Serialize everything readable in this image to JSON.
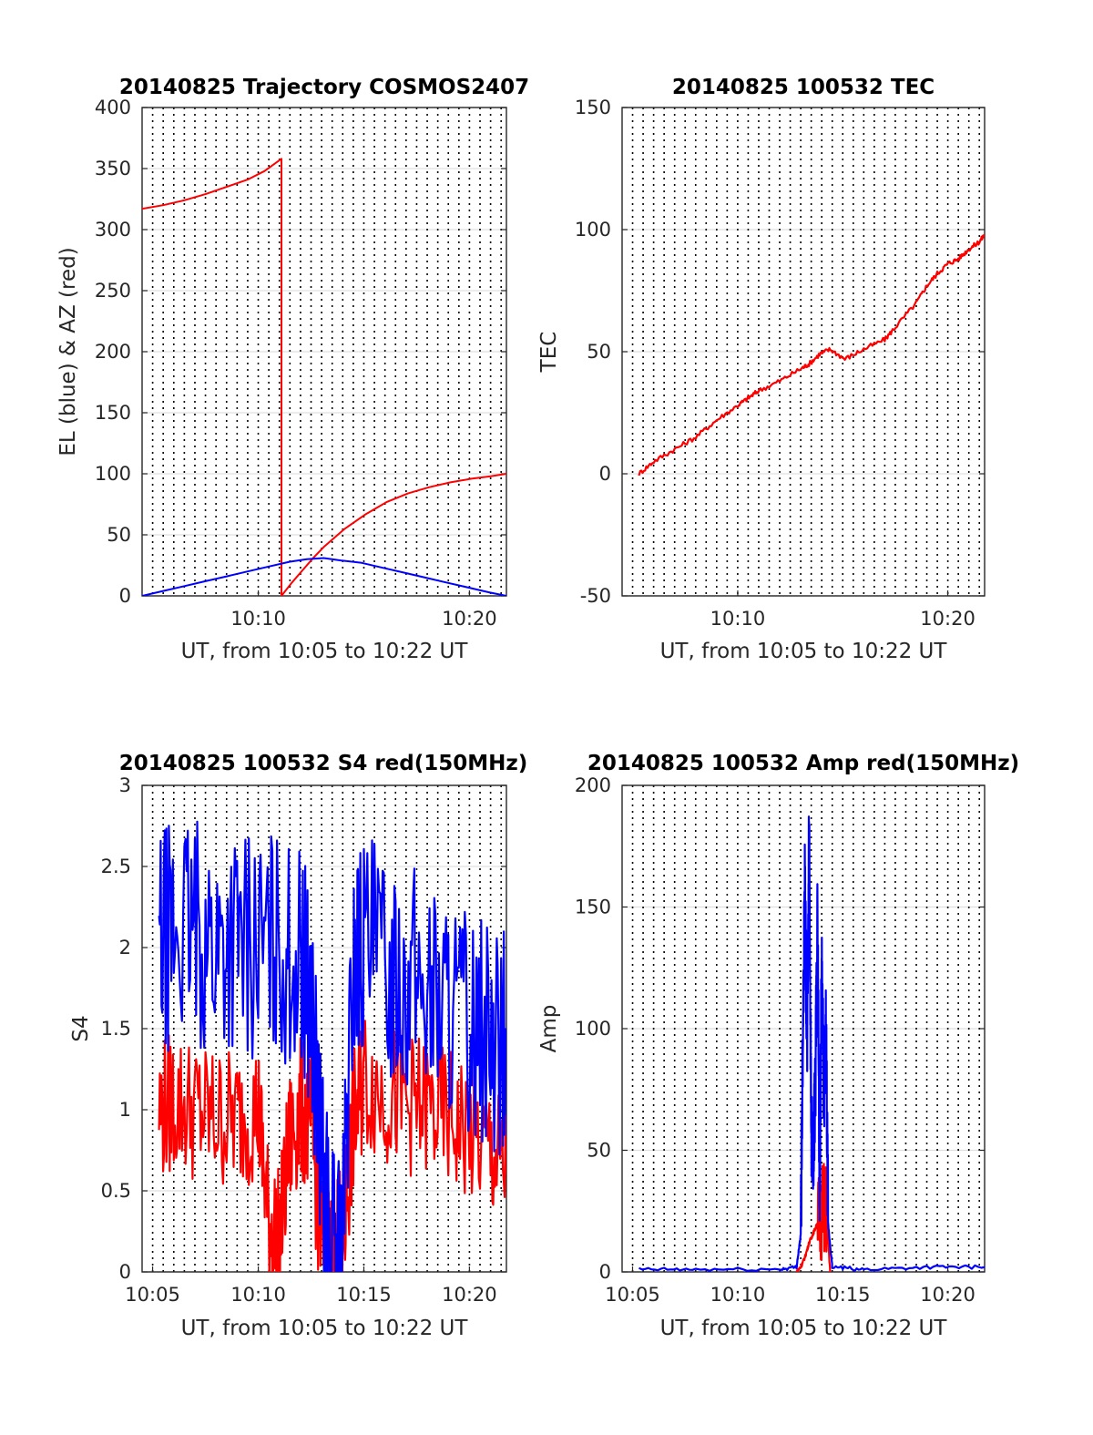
{
  "chart_data": [
    {
      "type": "line",
      "title": "20140825 Trajectory COSMOS2407",
      "xlabel": "UT, from 10:05 to 10:22 UT",
      "ylabel": "EL (blue) & AZ (red)",
      "xlim": [
        "10:04:30",
        "10:21:45"
      ],
      "ylim": [
        0,
        400
      ],
      "yticks": [
        "0",
        "50",
        "100",
        "150",
        "200",
        "250",
        "300",
        "350",
        "400"
      ],
      "xticks": [
        {
          "label": "10:10",
          "x": 10.1667
        },
        {
          "label": "10:20",
          "x": 10.3333
        }
      ],
      "grid": "vertical dotted at 30 s, horizontal light gray",
      "series": [
        {
          "color": "#ff0000",
          "x_minutes_after_1000": [
            4.5,
            5.5,
            6.5,
            7.5,
            8.5,
            9.5,
            10.3,
            11.1,
            11.1,
            11.6,
            12.1,
            12.6,
            13.1,
            14.1,
            15.1,
            16.1,
            17.1,
            18.1,
            19.1,
            20.1,
            21.0,
            21.75
          ],
          "values": [
            317,
            320,
            324,
            329,
            335,
            341,
            348,
            358,
            0,
            11,
            21,
            31,
            40,
            55,
            67,
            77,
            84,
            89,
            93,
            96,
            98,
            100
          ]
        },
        {
          "color": "#0000ff",
          "x_minutes_after_1000": [
            4.5,
            5.5,
            6.5,
            7.5,
            8.5,
            9.5,
            10.5,
            11.5,
            12.3,
            13.1,
            13.9,
            14.9,
            15.9,
            16.9,
            17.9,
            18.9,
            19.9,
            20.9,
            21.75
          ],
          "values": [
            0,
            4,
            8,
            12,
            16,
            20,
            24,
            28,
            30,
            31,
            29,
            27,
            23,
            19,
            15,
            11,
            7,
            3,
            0
          ]
        }
      ]
    },
    {
      "type": "line",
      "title": "20140825 100532 TEC",
      "xlabel": "UT, from 10:05 to 10:22 UT",
      "ylabel": "TEC",
      "xlim": [
        "10:04:30",
        "10:21:45"
      ],
      "ylim": [
        -50,
        150
      ],
      "yticks": [
        "-50",
        "0",
        "50",
        "100",
        "150"
      ],
      "xticks": [
        {
          "label": "10:10",
          "x": 10.1667
        },
        {
          "label": "10:20",
          "x": 10.3333
        }
      ],
      "series": [
        {
          "color": "#ff0000",
          "x_minutes_after_1000": [
            5.3,
            6.0,
            7.0,
            8.0,
            9.0,
            10.0,
            10.5,
            11.0,
            12.0,
            13.0,
            13.4,
            13.9,
            14.4,
            15.1,
            16.0,
            17.0,
            17.5,
            18.5,
            19.0,
            19.5,
            20.0,
            20.5,
            21.0,
            21.5,
            21.75
          ],
          "values": [
            0,
            5,
            10,
            15,
            22,
            28,
            31,
            34,
            38,
            43,
            45,
            49,
            51,
            47,
            51,
            55,
            60,
            70,
            77,
            82,
            86,
            88,
            92,
            95,
            98
          ]
        }
      ]
    },
    {
      "type": "line",
      "title": "20140825 100532 S4 red(150MHz)",
      "xlabel": "UT, from 10:05 to 10:22 UT",
      "ylabel": "S4",
      "xlim": [
        "10:04:30",
        "10:21:45"
      ],
      "ylim": [
        0,
        3
      ],
      "yticks": [
        "0",
        "0.5",
        "1",
        "1.5",
        "2",
        "2.5",
        "3"
      ],
      "xticks": [
        {
          "label": "10:05",
          "x": 10.0833
        },
        {
          "label": "10:10",
          "x": 10.1667
        },
        {
          "label": "10:15",
          "x": 10.25
        },
        {
          "label": "10:20",
          "x": 10.3333
        }
      ],
      "series": [
        {
          "color": "#ff0000",
          "x_minutes_after_1000": [
            5.3,
            6.0,
            7.0,
            8.0,
            9.0,
            10.0,
            10.5,
            11.0,
            11.5,
            12.0,
            12.5,
            13.0,
            13.5,
            14.0,
            14.5,
            15.0,
            16.0,
            17.0,
            18.0,
            19.0,
            20.0,
            21.0,
            21.75
          ],
          "values": [
            1.0,
            1.05,
            1.0,
            0.95,
            0.95,
            1.0,
            0.3,
            0.2,
            0.8,
            1.0,
            0.9,
            0.2,
            0.12,
            0.2,
            0.9,
            1.2,
            1.1,
            1.05,
            1.0,
            0.95,
            0.85,
            0.75,
            0.6
          ]
        },
        {
          "color": "#0000ff",
          "x_minutes_after_1000": [
            5.3,
            6.0,
            7.0,
            8.0,
            9.0,
            10.0,
            11.0,
            12.0,
            12.5,
            13.0,
            13.5,
            14.0,
            14.5,
            15.0,
            16.0,
            17.0,
            18.0,
            19.0,
            20.0,
            21.0,
            21.75
          ],
          "values": [
            2.0,
            2.1,
            2.1,
            2.0,
            2.05,
            2.0,
            2.0,
            1.9,
            1.7,
            0.6,
            0.1,
            0.15,
            1.9,
            2.0,
            1.9,
            1.85,
            1.75,
            1.65,
            1.55,
            1.45,
            1.4
          ]
        }
      ]
    },
    {
      "type": "line",
      "title": "20140825 100532 Amp red(150MHz)",
      "xlabel": "UT, from 10:05 to 10:22 UT",
      "ylabel": "Amp",
      "xlim": [
        "10:04:30",
        "10:21:45"
      ],
      "ylim": [
        0,
        200
      ],
      "yticks": [
        "0",
        "50",
        "100",
        "150",
        "200"
      ],
      "xticks": [
        {
          "label": "10:05",
          "x": 10.0833
        },
        {
          "label": "10:10",
          "x": 10.1667
        },
        {
          "label": "10:15",
          "x": 10.25
        },
        {
          "label": "10:20",
          "x": 10.3333
        }
      ],
      "series": [
        {
          "color": "#ff0000",
          "x_minutes_after_1000": [
            12.8,
            13.0,
            13.2,
            13.4,
            13.6,
            13.8,
            14.0,
            14.2,
            14.4
          ],
          "values": [
            0,
            2,
            6,
            12,
            16,
            20,
            25,
            28,
            0
          ]
        },
        {
          "color": "#0000ff",
          "x_minutes_after_1000": [
            5.3,
            8.0,
            12.0,
            12.8,
            13.0,
            13.1,
            13.2,
            13.3,
            13.4,
            13.5,
            13.6,
            13.7,
            13.8,
            13.9,
            14.0,
            14.1,
            14.2,
            14.3,
            14.5,
            16.0,
            19.0,
            21.75
          ],
          "values": [
            1,
            1,
            1,
            2,
            15,
            100,
            160,
            90,
            185,
            60,
            40,
            80,
            145,
            30,
            130,
            70,
            100,
            20,
            2,
            1,
            2,
            2
          ]
        }
      ]
    }
  ]
}
